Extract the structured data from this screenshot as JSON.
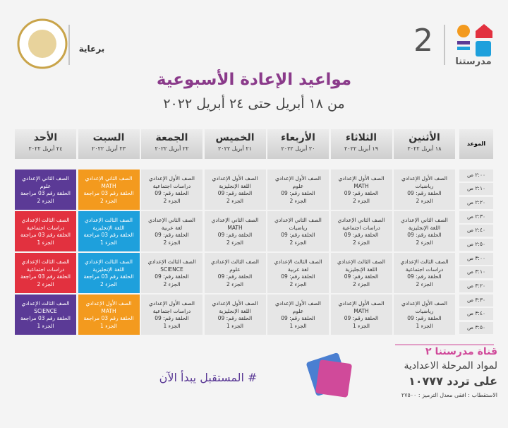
{
  "header": {
    "brand": "مدرستنا",
    "channel_number": "2",
    "sponsor": "برعاية",
    "title": "مواعيد الإعادة الأسبوعية",
    "subtitle": "من ١٨ أبريل حتى ٢٤ أبريل ٢٠٢٢"
  },
  "table": {
    "time_header": "الموعد",
    "days": [
      {
        "name": "الأثنين",
        "date": "١٨ أبريل ٢٠٢٢"
      },
      {
        "name": "الثلاثاء",
        "date": "١٩ أبريل ٢٠٢٢"
      },
      {
        "name": "الأربعاء",
        "date": "٢٠ أبريل ٢٠٢٢"
      },
      {
        "name": "الخميس",
        "date": "٢١ أبريل ٢٠٢٢"
      },
      {
        "name": "الجمعة",
        "date": "٢٢ أبريل ٢٠٢٢"
      },
      {
        "name": "السبت",
        "date": "٢٣ أبريل ٢٠٢٢"
      },
      {
        "name": "الأحد",
        "date": "٢٤ أبريل ٢٠٢٢"
      }
    ],
    "blocks": [
      {
        "times": [
          "٢:٠٠ ص",
          "٢:١٠ ص",
          "٢:٢٠ ص"
        ],
        "cells": [
          {
            "grade": "الصف الأول الإعدادي",
            "subject": "رياضيات",
            "episode": "الحلقة رقم: 09",
            "part": "الجزء 2",
            "color": "#e6e6e6"
          },
          {
            "grade": "الصف الأول الإعدادي",
            "subject": "MATH",
            "episode": "الحلقة رقم: 09",
            "part": "الجزء 2",
            "color": "#e6e6e6"
          },
          {
            "grade": "الصف الأول الإعدادي",
            "subject": "علوم",
            "episode": "الحلقة رقم: 09",
            "part": "الجزء 2",
            "color": "#e6e6e6"
          },
          {
            "grade": "الصف الأول الإعدادي",
            "subject": "اللغة الإنجليزية",
            "episode": "الحلقة رقم: 09",
            "part": "الجزء 2",
            "color": "#e6e6e6"
          },
          {
            "grade": "الصف الأول الإعدادي",
            "subject": "دراسات اجتماعية",
            "episode": "الحلقة رقم: 09",
            "part": "الجزء 2",
            "color": "#e6e6e6"
          },
          {
            "grade": "الصف الثاني الإعدادي",
            "subject": "MATH",
            "episode": "الحلقة رقم 03 مراجعة",
            "part": "الجزء 2",
            "color": "#f39a1e"
          },
          {
            "grade": "الصف الثاني الإعدادي",
            "subject": "علوم",
            "episode": "الحلقة رقم 03 مراجعة",
            "part": "الجزء 2",
            "color": "#5b3a96"
          }
        ]
      },
      {
        "times": [
          "٢:٣٠ ص",
          "٢:٤٠ ص",
          "٢:٥٠ ص"
        ],
        "cells": [
          {
            "grade": "الصف الثاني الإعدادي",
            "subject": "اللغة الإنجليزية",
            "episode": "الحلقة رقم: 09",
            "part": "الجزء 2",
            "color": "#e6e6e6"
          },
          {
            "grade": "الصف الثاني الإعدادي",
            "subject": "دراسات اجتماعية",
            "episode": "الحلقة رقم: 09",
            "part": "الجزء 2",
            "color": "#e6e6e6"
          },
          {
            "grade": "الصف الثاني الإعدادي",
            "subject": "رياضيات",
            "episode": "الحلقة رقم: 09",
            "part": "الجزء 2",
            "color": "#e6e6e6"
          },
          {
            "grade": "الصف الثاني الإعدادي",
            "subject": "MATH",
            "episode": "الحلقة رقم: 09",
            "part": "الجزء 2",
            "color": "#e6e6e6"
          },
          {
            "grade": "الصف الثاني الإعدادي",
            "subject": "لغة عربية",
            "episode": "الحلقة رقم: 09",
            "part": "الجزء 2",
            "color": "#e6e6e6"
          },
          {
            "grade": "الصف الثالث الإعدادي",
            "subject": "اللغة الإنجليزية",
            "episode": "الحلقة رقم 03 مراجعة",
            "part": "الجزء 1",
            "color": "#1ea0dc"
          },
          {
            "grade": "الصف الثالث الإعدادي",
            "subject": "دراسات اجتماعية",
            "episode": "الحلقة رقم 03 مراجعة",
            "part": "الجزء 1",
            "color": "#e2313f"
          }
        ]
      },
      {
        "times": [
          "٣:٠٠ ص",
          "٣:١٠ ص",
          "٣:٢٠ ص"
        ],
        "cells": [
          {
            "grade": "الصف الثالث الإعدادي",
            "subject": "دراسات اجتماعية",
            "episode": "الحلقة رقم: 09",
            "part": "الجزء 2",
            "color": "#e6e6e6"
          },
          {
            "grade": "الصف الثالث الإعدادي",
            "subject": "اللغة الإنجليزية",
            "episode": "الحلقة رقم: 09",
            "part": "الجزء 2",
            "color": "#e6e6e6"
          },
          {
            "grade": "الصف الثالث الإعدادي",
            "subject": "لغة عربية",
            "episode": "الحلقة رقم: 09",
            "part": "الجزء 2",
            "color": "#e6e6e6"
          },
          {
            "grade": "الصف الثالث الإعدادي",
            "subject": "علوم",
            "episode": "الحلقة رقم: 09",
            "part": "الجزء 2",
            "color": "#e6e6e6"
          },
          {
            "grade": "الصف الثالث الإعدادي",
            "subject": "SCIENCE",
            "episode": "الحلقة رقم: 09",
            "part": "الجزء 2",
            "color": "#e6e6e6"
          },
          {
            "grade": "الصف الثالث الإعدادي",
            "subject": "اللغة الإنجليزية",
            "episode": "الحلقة رقم 03 مراجعة",
            "part": "الجزء 2",
            "color": "#1ea0dc"
          },
          {
            "grade": "الصف الثالث الإعدادي",
            "subject": "دراسات اجتماعية",
            "episode": "الحلقة رقم 03 مراجعة",
            "part": "الجزء 2",
            "color": "#e2313f"
          }
        ]
      },
      {
        "times": [
          "٣:٣٠ ص",
          "٣:٤٠ ص",
          "٣:٥٠ ص"
        ],
        "cells": [
          {
            "grade": "الصف الأول الإعدادي",
            "subject": "رياضيات",
            "episode": "الحلقة رقم: 09",
            "part": "الجزء 1",
            "color": "#e6e6e6"
          },
          {
            "grade": "الصف الأول الإعدادي",
            "subject": "MATH",
            "episode": "الحلقة رقم: 09",
            "part": "الجزء 1",
            "color": "#e6e6e6"
          },
          {
            "grade": "الصف الأول الإعدادي",
            "subject": "علوم",
            "episode": "الحلقة رقم: 09",
            "part": "الجزء 1",
            "color": "#e6e6e6"
          },
          {
            "grade": "الصف الأول الإعدادي",
            "subject": "اللغة الإنجليزية",
            "episode": "الحلقة رقم: 09",
            "part": "الجزء 1",
            "color": "#e6e6e6"
          },
          {
            "grade": "الصف الأول الإعدادي",
            "subject": "دراسات اجتماعية",
            "episode": "الحلقة رقم: 09",
            "part": "الجزء 1",
            "color": "#e6e6e6"
          },
          {
            "grade": "الصف الأول الإعدادي",
            "subject": "MATH",
            "episode": "الحلقة رقم 03 مراجعة",
            "part": "الجزء 1",
            "color": "#f39a1e"
          },
          {
            "grade": "الصف الثالث الإعدادي",
            "subject": "SCIENCE",
            "episode": "الحلقة رقم 03 مراجعة",
            "part": "الجزء 1",
            "color": "#5b3a96"
          }
        ]
      }
    ]
  },
  "footer": {
    "hashtag": "# المستقبل يبدأ الآن",
    "channel": "قناة مدرستنا ٢",
    "audience": "لمواد المرحلة الاعدادية",
    "frequency": "على تردد ١٠٧٧٧",
    "details": "الاستقطاب : افقى معدل الترميز : ٢٧٥٠٠"
  }
}
